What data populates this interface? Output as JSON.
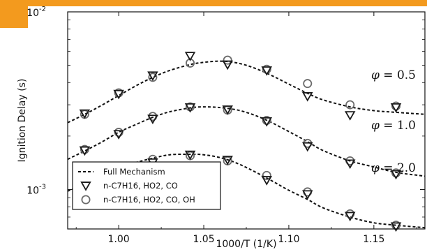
{
  "chart_data": {
    "type": "line",
    "title": "",
    "xlabel": "1000/T (1/K)",
    "ylabel": "Ignition Delay (s)",
    "xlim": [
      0.97,
      1.18
    ],
    "ylim": [
      0.0006,
      0.01
    ],
    "yscale": "log",
    "x_ticks": [
      "1.00",
      "1.05",
      "1.10",
      "1.15"
    ],
    "x_tick_values": [
      1.0,
      1.05,
      1.1,
      1.15
    ],
    "y_tick_values": [
      0.001,
      0.01
    ],
    "y_tick_mantissa": "10",
    "y_tick_exponents": [
      "-3",
      "-2"
    ],
    "grid": false,
    "legend_position": "bottom-left",
    "x": [
      0.98,
      1.0,
      1.02,
      1.042,
      1.064,
      1.087,
      1.111,
      1.136,
      1.163
    ],
    "curve_x": [
      0.97,
      0.98,
      0.99,
      1.0,
      1.01,
      1.02,
      1.03,
      1.042,
      1.05,
      1.06,
      1.07,
      1.08,
      1.09,
      1.1,
      1.111,
      1.12,
      1.136,
      1.15,
      1.163,
      1.18
    ],
    "groups": [
      {
        "label": "φ = 0.5",
        "label_prefix": "φ",
        "label_rest": " = 0.5",
        "full_mechanism": [
          0.00238,
          0.00265,
          0.00298,
          0.00338,
          0.00383,
          0.00428,
          0.00468,
          0.00505,
          0.0052,
          0.00528,
          0.00515,
          0.00482,
          0.00438,
          0.00392,
          0.00348,
          0.0032,
          0.00292,
          0.00278,
          0.00272,
          0.00265
        ],
        "reduced_3": [
          0.00268,
          0.00345,
          0.00438,
          0.00565,
          0.00505,
          0.00468,
          0.00335,
          0.00262,
          0.0029
        ],
        "reduced_4": [
          0.00265,
          0.0035,
          0.00428,
          0.00515,
          0.00535,
          0.00475,
          0.00395,
          0.003,
          0.00295
        ]
      },
      {
        "label": "φ = 1.0",
        "label_prefix": "φ",
        "label_rest": " = 1.0",
        "full_mechanism": [
          0.00148,
          0.00165,
          0.00185,
          0.0021,
          0.00232,
          0.00255,
          0.00274,
          0.00288,
          0.00292,
          0.00289,
          0.0028,
          0.00262,
          0.00238,
          0.00212,
          0.00186,
          0.00166,
          0.00145,
          0.00134,
          0.00125,
          0.00119
        ],
        "reduced_3": [
          0.00166,
          0.00205,
          0.0025,
          0.0029,
          0.00282,
          0.00242,
          0.00175,
          0.0014,
          0.00122
        ],
        "reduced_4": [
          0.00168,
          0.0021,
          0.00258,
          0.00292,
          0.0028,
          0.00245,
          0.00182,
          0.00145,
          0.00124
        ]
      },
      {
        "label": "φ = 2.0",
        "label_prefix": "φ",
        "label_rest": " = 2.0",
        "full_mechanism": [
          0.00098,
          0.00108,
          0.0012,
          0.00132,
          0.00142,
          0.0015,
          0.00157,
          0.00158,
          0.00157,
          0.00151,
          0.0014,
          0.00126,
          0.00112,
          0.00099,
          0.00088,
          0.00079,
          0.0007,
          0.00065,
          0.00063,
          0.00061
        ],
        "reduced_3": [
          0.00101,
          0.00123,
          0.00142,
          0.00157,
          0.00147,
          0.00113,
          0.00094,
          0.00071,
          0.00062
        ],
        "reduced_4": [
          0.00103,
          0.00126,
          0.00148,
          0.00155,
          0.00145,
          0.0012,
          0.00097,
          0.00073,
          0.00063
        ]
      }
    ],
    "legend": [
      {
        "marker": "dashed-line",
        "label": "Full Mechanism"
      },
      {
        "marker": "triangle-down",
        "label": "n-C7H16, HO2, CO"
      },
      {
        "marker": "circle",
        "label": "n-C7H16, HO2, CO, OH"
      }
    ]
  },
  "colors": {
    "banner": "#f39a1e",
    "ink": "#111111",
    "marker_edge": "#1a1a1a",
    "circle_edge": "#6b6b6b"
  }
}
